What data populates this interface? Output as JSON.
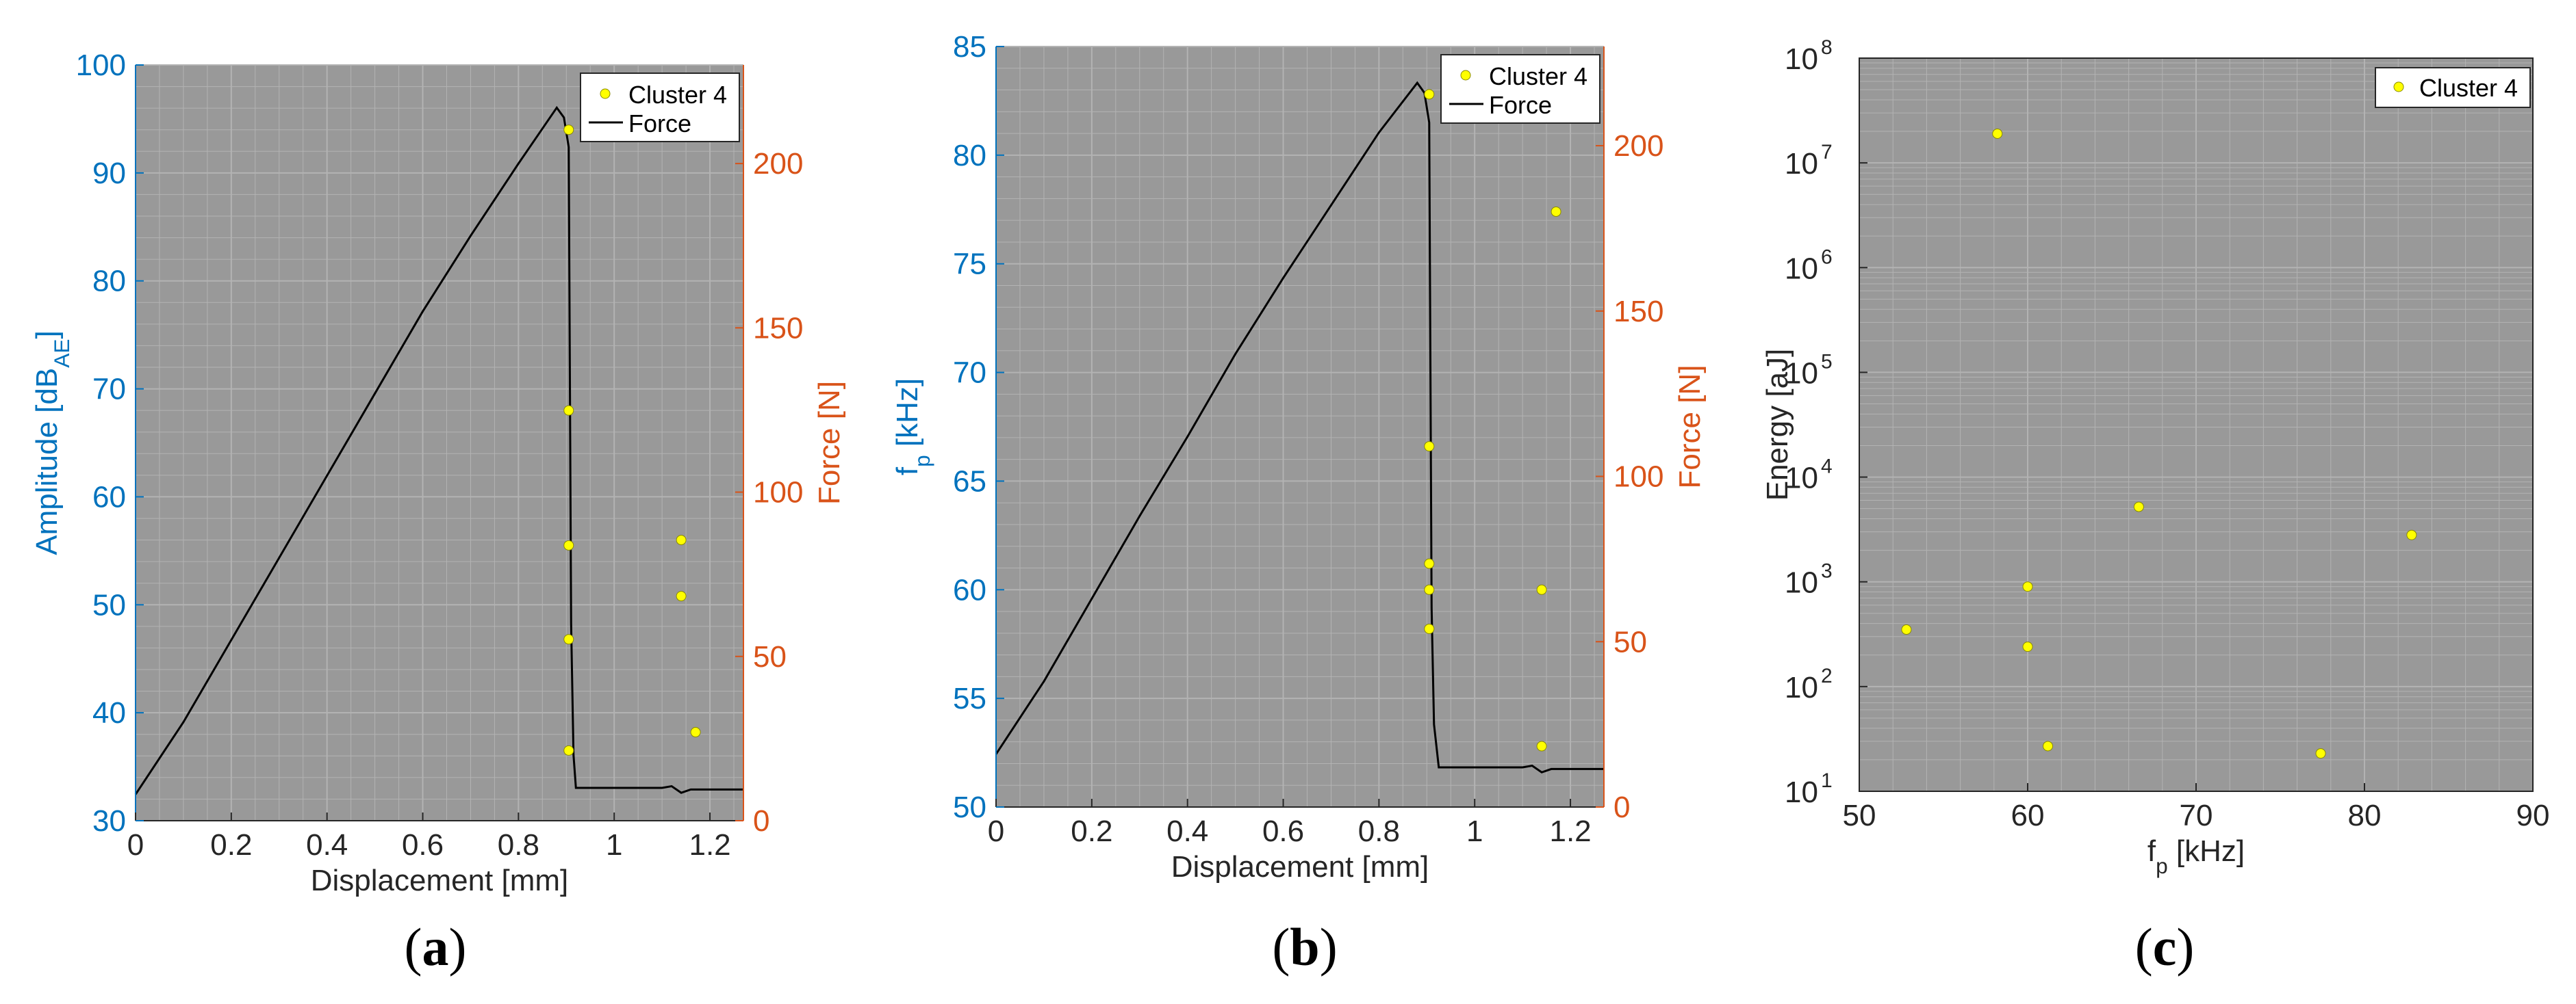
{
  "colors": {
    "plot_bg": "#999999",
    "grid": "#b3b3b3",
    "left_axis": "#0072bd",
    "right_axis": "#d95319",
    "marker": "#ffff00",
    "force_line": "#000000"
  },
  "captions": {
    "a": "a",
    "b": "b",
    "c": "c"
  },
  "chart_data": [
    {
      "id": "a",
      "type": "scatter",
      "xlabel": "Displacement [mm]",
      "ylabel": "Amplitude [dB_AE]",
      "ylabel_main": "Amplitude [dB",
      "ylabel_sub": "AE",
      "ylabel_end": "]",
      "y2label": "Force [N]",
      "xlim": [
        0,
        1.27
      ],
      "ylim": [
        30,
        100
      ],
      "y2lim": [
        0,
        230
      ],
      "xticks": [
        0,
        0.2,
        0.4,
        0.6,
        0.8,
        1,
        1.2
      ],
      "xtick_labels": [
        "0",
        "0.2",
        "0.4",
        "0.6",
        "0.8",
        "1",
        "1.2"
      ],
      "yticks": [
        30,
        40,
        50,
        60,
        70,
        80,
        90,
        100
      ],
      "ytick_labels": [
        "30",
        "40",
        "50",
        "60",
        "70",
        "80",
        "90",
        "100"
      ],
      "y2ticks": [
        0,
        50,
        100,
        150,
        200
      ],
      "y2tick_labels": [
        "0",
        "50",
        "100",
        "150",
        "200"
      ],
      "legend": [
        "Cluster 4",
        "Force"
      ],
      "legend_position": "top-right",
      "series": [
        {
          "name": "Cluster 4",
          "x": [
            0.905,
            0.905,
            0.905,
            0.905,
            0.905,
            1.14,
            1.14,
            1.17
          ],
          "y": [
            94,
            68,
            55.5,
            46.8,
            36.5,
            56,
            50.8,
            38.2
          ]
        },
        {
          "name": "Force",
          "x": [
            0,
            0.1,
            0.2,
            0.3,
            0.4,
            0.5,
            0.6,
            0.7,
            0.8,
            0.88,
            0.895,
            0.905,
            0.91,
            0.915,
            0.92,
            1.1,
            1.12,
            1.14,
            1.16,
            1.27
          ],
          "y": [
            8,
            30,
            55,
            80,
            105,
            130,
            155,
            178,
            200,
            217,
            214,
            205,
            60,
            20,
            10,
            10,
            10.5,
            8.5,
            9.5,
            9.5
          ]
        }
      ]
    },
    {
      "id": "b",
      "type": "scatter",
      "xlabel": "Displacement [mm]",
      "ylabel": "f_p [kHz]",
      "ylabel_main": "f",
      "ylabel_sub": "p",
      "ylabel_end": " [kHz]",
      "y2label": "Force [N]",
      "xlim": [
        0,
        1.27
      ],
      "ylim": [
        50,
        85
      ],
      "y2lim": [
        0,
        230
      ],
      "xticks": [
        0,
        0.2,
        0.4,
        0.6,
        0.8,
        1,
        1.2
      ],
      "xtick_labels": [
        "0",
        "0.2",
        "0.4",
        "0.6",
        "0.8",
        "1",
        "1.2"
      ],
      "yticks": [
        50,
        55,
        60,
        65,
        70,
        75,
        80,
        85
      ],
      "ytick_labels": [
        "50",
        "55",
        "60",
        "65",
        "70",
        "75",
        "80",
        "85"
      ],
      "y2ticks": [
        0,
        50,
        100,
        150,
        200
      ],
      "y2tick_labels": [
        "0",
        "50",
        "100",
        "150",
        "200"
      ],
      "legend": [
        "Cluster 4",
        "Force"
      ],
      "legend_position": "top-right",
      "series": [
        {
          "name": "Cluster 4",
          "x": [
            0.905,
            0.905,
            0.905,
            0.905,
            0.905,
            1.14,
            1.14,
            1.17
          ],
          "y": [
            82.8,
            66.6,
            61.2,
            60,
            58.2,
            60,
            52.8,
            77.4
          ]
        },
        {
          "name": "Force",
          "x": [
            0,
            0.1,
            0.2,
            0.3,
            0.4,
            0.5,
            0.6,
            0.7,
            0.8,
            0.88,
            0.895,
            0.905,
            0.91,
            0.915,
            0.925,
            1.1,
            1.12,
            1.14,
            1.16,
            1.27
          ],
          "y": [
            16,
            38,
            63,
            88,
            112,
            137,
            160,
            182,
            204,
            219,
            216,
            207,
            60,
            25,
            12,
            12,
            12.5,
            10.5,
            11.5,
            11.5
          ]
        }
      ]
    },
    {
      "id": "c",
      "type": "scatter",
      "xlabel": "f_p [kHz]",
      "xlabel_main": "f",
      "xlabel_sub": "p",
      "xlabel_end": " [kHz]",
      "ylabel": "Energy [aJ]",
      "xlim": [
        50,
        90
      ],
      "ylim": [
        10,
        100000000
      ],
      "yscale": "log",
      "xticks": [
        50,
        60,
        70,
        80,
        90
      ],
      "xtick_labels": [
        "50",
        "60",
        "70",
        "80",
        "90"
      ],
      "ytick_exponents": [
        "1",
        "2",
        "3",
        "4",
        "5",
        "6",
        "7",
        "8"
      ],
      "ytick_base": "10",
      "legend": [
        "Cluster 4"
      ],
      "legend_position": "top-right",
      "series": [
        {
          "name": "Cluster 4",
          "x": [
            58.2,
            52.8,
            60,
            60,
            61.2,
            66.6,
            77.4,
            82.8
          ],
          "y": [
            19000000,
            350,
            900,
            240,
            27,
            5200,
            23,
            2800
          ]
        }
      ]
    }
  ]
}
